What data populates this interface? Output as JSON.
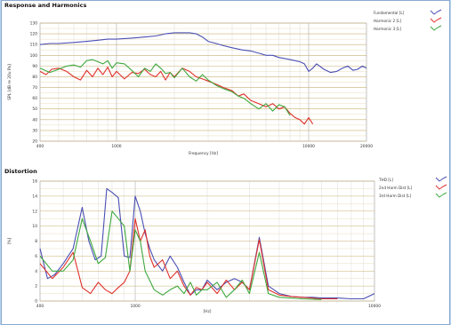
{
  "chart_data": [
    {
      "type": "line",
      "title": "Response and Harmonics",
      "xlabel": "Frequency [Hz]",
      "ylabel": "SPL [dB re 20u Pa]",
      "xscale": "log",
      "xlim": [
        400,
        20000
      ],
      "ylim": [
        20,
        130
      ],
      "xticks": [
        400,
        1000,
        10000,
        20000
      ],
      "xtick_labels": [
        "400",
        "1000",
        "10000",
        "20000"
      ],
      "yticks": [
        20,
        30,
        40,
        50,
        60,
        70,
        80,
        90,
        100,
        110,
        120,
        130
      ],
      "ytick_labels": [
        "20",
        "30",
        "40",
        "50",
        "60",
        "70",
        "80",
        "90",
        "100",
        "110",
        "120",
        "130"
      ],
      "grid": true,
      "legend_position": "right",
      "series": [
        {
          "name": "Fundamental [L]",
          "color": "#4a4fb3",
          "x": [
            400,
            450,
            500,
            600,
            700,
            800,
            900,
            1000,
            1200,
            1400,
            1600,
            1800,
            2000,
            2200,
            2400,
            2600,
            2800,
            3000,
            3300,
            3600,
            4000,
            4500,
            5000,
            5500,
            6000,
            6500,
            7000,
            7500,
            8000,
            8500,
            9000,
            9500,
            10000,
            10500,
            11000,
            12000,
            13000,
            14000,
            15000,
            16000,
            17000,
            18000,
            19000,
            20000
          ],
          "y": [
            110,
            111,
            111,
            112,
            113,
            114,
            115,
            115,
            116,
            117,
            118,
            120,
            121,
            121,
            121,
            120,
            117,
            113,
            111,
            109,
            107,
            105,
            104,
            102,
            100,
            100,
            98,
            97,
            96,
            95,
            94,
            92,
            85,
            88,
            92,
            87,
            84,
            85,
            88,
            90,
            86,
            87,
            90,
            88
          ]
        },
        {
          "name": "Harmonic 2 [L]",
          "color": "#e0302a",
          "x": [
            400,
            430,
            460,
            500,
            550,
            600,
            650,
            700,
            750,
            800,
            850,
            900,
            950,
            1000,
            1100,
            1200,
            1300,
            1400,
            1500,
            1600,
            1700,
            1800,
            1900,
            2000,
            2200,
            2400,
            2600,
            2800,
            3000,
            3300,
            3600,
            4000,
            4300,
            4600,
            5000,
            5500,
            6000,
            6500,
            7000,
            7500,
            8000,
            8500,
            9000,
            9500,
            10000,
            10500
          ],
          "y": [
            85,
            82,
            87,
            88,
            85,
            80,
            77,
            86,
            80,
            88,
            82,
            89,
            80,
            85,
            78,
            84,
            83,
            87,
            82,
            80,
            85,
            77,
            84,
            80,
            88,
            85,
            80,
            78,
            76,
            73,
            70,
            67,
            62,
            64,
            58,
            55,
            52,
            55,
            50,
            52,
            46,
            42,
            40,
            36,
            42,
            36
          ]
        },
        {
          "name": "Harmonic 3 [L]",
          "color": "#3ea83e",
          "x": [
            400,
            450,
            500,
            550,
            600,
            650,
            700,
            750,
            800,
            850,
            900,
            950,
            1000,
            1100,
            1200,
            1300,
            1400,
            1500,
            1600,
            1700,
            1800,
            1900,
            2000,
            2200,
            2400,
            2600,
            2800,
            3000,
            3300,
            3600,
            4000,
            4300,
            4600,
            5000,
            5500,
            6000,
            6500,
            7000,
            7500,
            8000
          ],
          "y": [
            88,
            84,
            87,
            90,
            91,
            89,
            95,
            96,
            94,
            92,
            95,
            88,
            93,
            92,
            86,
            80,
            88,
            85,
            92,
            88,
            83,
            84,
            79,
            88,
            80,
            76,
            82,
            77,
            72,
            69,
            66,
            62,
            60,
            55,
            50,
            55,
            48,
            54,
            52,
            44
          ]
        }
      ]
    },
    {
      "type": "line",
      "title": "Distortion",
      "xlabel": "[Hz]",
      "ylabel": "[%]",
      "xscale": "log",
      "xlim": [
        400,
        10000
      ],
      "ylim": [
        0,
        16
      ],
      "xticks": [
        400,
        1000,
        10000
      ],
      "xtick_labels": [
        "400",
        "1000",
        "10000"
      ],
      "yticks": [
        0,
        2,
        4,
        6,
        8,
        10,
        12,
        14,
        16
      ],
      "ytick_labels": [
        "0",
        "2",
        "4",
        "6",
        "8",
        "10",
        "12",
        "14",
        "16"
      ],
      "grid": true,
      "legend_position": "right",
      "series": [
        {
          "name": "THD [L]",
          "color": "#4a4fb3",
          "x": [
            400,
            430,
            460,
            500,
            550,
            600,
            640,
            680,
            720,
            760,
            800,
            850,
            900,
            950,
            1000,
            1050,
            1100,
            1150,
            1200,
            1300,
            1400,
            1500,
            1600,
            1700,
            1800,
            1900,
            2000,
            2200,
            2400,
            2600,
            2800,
            3000,
            3300,
            3600,
            4000,
            4500,
            5000,
            5500,
            6000,
            7000,
            8000,
            9000,
            10000
          ],
          "y": [
            7,
            3,
            3.5,
            5,
            7,
            12.5,
            8,
            5.5,
            6,
            15,
            14.5,
            13.8,
            6,
            5.8,
            14,
            12,
            9,
            7,
            5.5,
            4,
            6,
            4.5,
            2.5,
            0.8,
            1.5,
            1.5,
            2.8,
            1.5,
            2.5,
            3,
            2.5,
            1.5,
            8.5,
            2,
            1,
            0.6,
            0.5,
            0.5,
            0.4,
            0.4,
            0.3,
            0.3,
            1
          ]
        },
        {
          "name": "2nd Harm Dist [L]",
          "color": "#e0302a",
          "x": [
            400,
            450,
            500,
            550,
            600,
            650,
            700,
            750,
            800,
            850,
            900,
            950,
            1000,
            1050,
            1100,
            1150,
            1200,
            1300,
            1400,
            1500,
            1600,
            1700,
            1800,
            1900,
            2000,
            2200,
            2400,
            2600,
            2800,
            3000,
            3300,
            3600,
            4000,
            4500,
            5000,
            6000,
            7000
          ],
          "y": [
            5,
            3,
            4.5,
            6.5,
            1.8,
            1,
            2.5,
            1.5,
            1,
            1.8,
            2.5,
            4,
            11,
            8,
            9.5,
            6,
            4.5,
            5.5,
            3,
            4,
            2,
            0.8,
            1.8,
            1.5,
            2.5,
            1,
            2.8,
            1.5,
            2.5,
            1.5,
            8.2,
            1.5,
            0.8,
            0.6,
            0.5,
            0.3,
            0.3
          ]
        },
        {
          "name": "3rd Harm Dist [L]",
          "color": "#3ea83e",
          "x": [
            400,
            450,
            500,
            550,
            600,
            650,
            700,
            750,
            800,
            850,
            900,
            950,
            1000,
            1050,
            1100,
            1200,
            1300,
            1400,
            1500,
            1600,
            1700,
            1800,
            1900,
            2000,
            2200,
            2400,
            2600,
            2800,
            3000,
            3300,
            3600,
            4000,
            5000,
            6000
          ],
          "y": [
            6,
            4,
            4,
            5.5,
            11,
            8,
            5,
            5.8,
            12,
            11,
            10,
            4,
            9.5,
            8,
            4,
            1.5,
            0.8,
            1.5,
            2,
            1,
            2.5,
            0.8,
            1.5,
            1.5,
            2.5,
            0.5,
            1.5,
            2.8,
            1,
            6.5,
            1,
            0.5,
            0.3,
            0.2
          ]
        }
      ]
    }
  ]
}
